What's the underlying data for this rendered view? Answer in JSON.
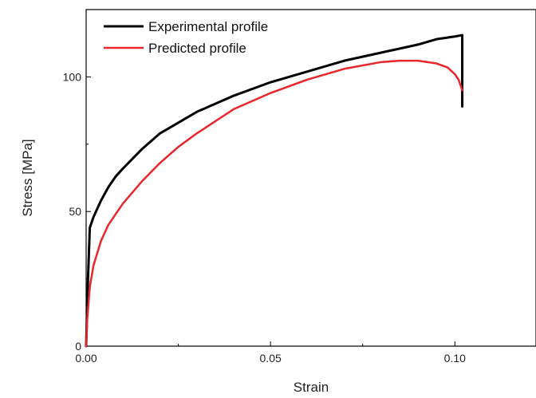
{
  "chart_data": {
    "type": "line",
    "xlabel": "Strain",
    "ylabel": "Stress [MPa]",
    "xlim": [
      0.0,
      0.122
    ],
    "ylim": [
      0,
      125
    ],
    "x_ticks": [
      0.0,
      0.05,
      0.1
    ],
    "x_tick_labels": [
      "0.00",
      "0.05",
      "0.10"
    ],
    "y_ticks": [
      0,
      50,
      100
    ],
    "y_tick_labels": [
      "0",
      "50",
      "100"
    ],
    "grid": false,
    "legend_position": "top-left",
    "series": [
      {
        "name": "Experimental profile",
        "color": "#000000",
        "x": [
          0.0,
          0.0005,
          0.001,
          0.002,
          0.004,
          0.006,
          0.008,
          0.01,
          0.015,
          0.02,
          0.025,
          0.03,
          0.035,
          0.04,
          0.05,
          0.06,
          0.07,
          0.08,
          0.09,
          0.095,
          0.1,
          0.102,
          0.102,
          0.102
        ],
        "y": [
          0,
          25,
          44,
          48,
          54,
          59,
          63,
          66,
          73,
          79,
          83,
          87,
          90,
          93,
          98,
          102,
          106,
          109,
          112,
          114,
          115,
          115.5,
          100,
          89
        ]
      },
      {
        "name": "Predicted profile",
        "color": "#e8262b",
        "x": [
          0.0,
          0.0003,
          0.001,
          0.002,
          0.004,
          0.006,
          0.01,
          0.015,
          0.02,
          0.025,
          0.03,
          0.04,
          0.05,
          0.06,
          0.07,
          0.08,
          0.085,
          0.09,
          0.095,
          0.098,
          0.1,
          0.101,
          0.102
        ],
        "y": [
          0,
          10,
          22,
          30,
          39,
          45,
          53,
          61,
          68,
          74,
          79,
          88,
          94,
          99,
          103,
          105.5,
          106,
          106,
          105,
          103.5,
          101,
          99,
          95
        ]
      }
    ]
  }
}
